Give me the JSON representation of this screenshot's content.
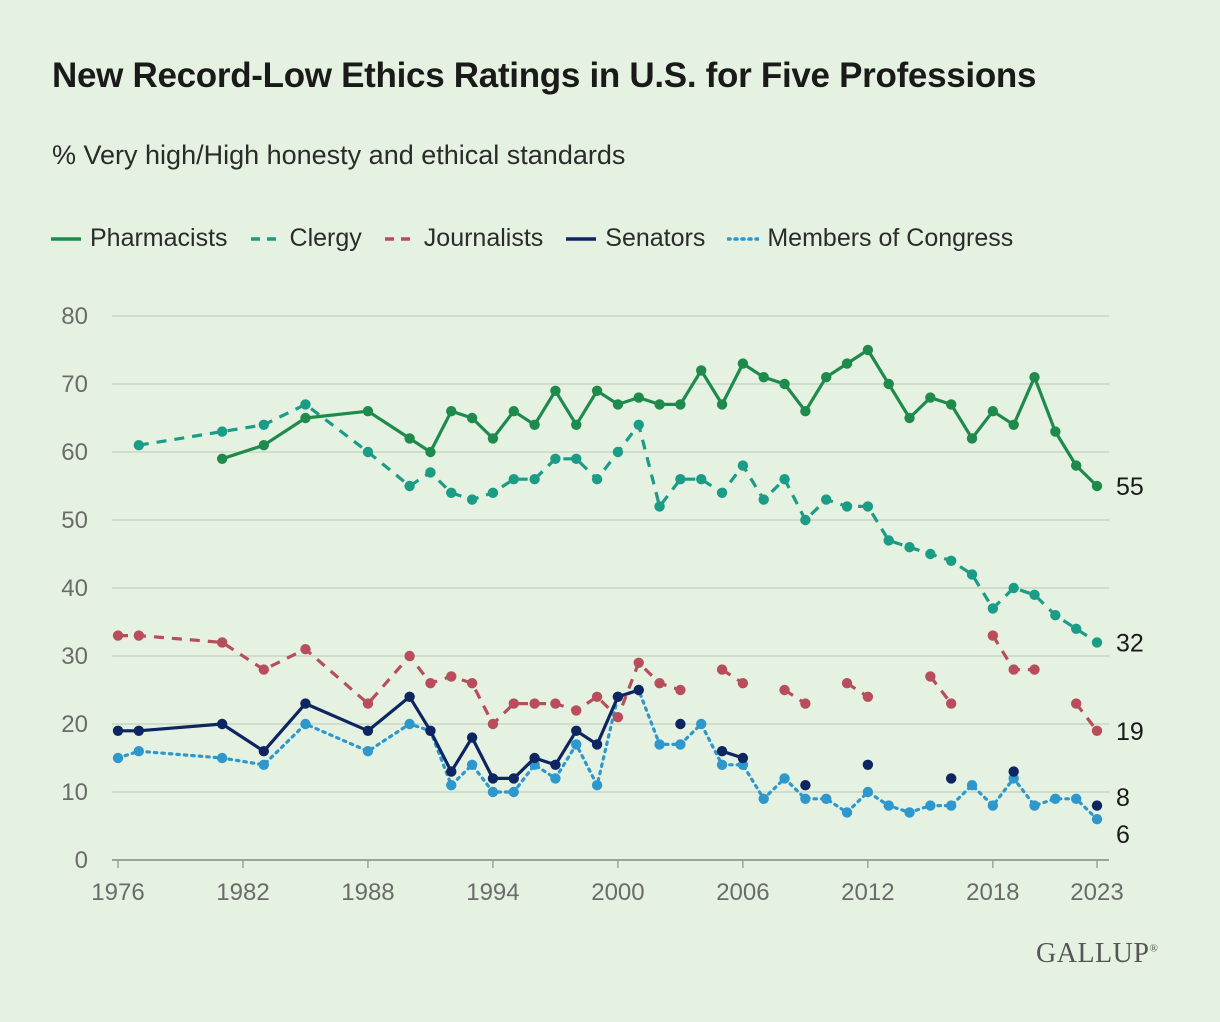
{
  "title": "New Record-Low Ethics Ratings in U.S. for Five Professions",
  "subtitle": "% Very high/High honesty and ethical standards",
  "brand": "GALLUP",
  "brand_mark": "®",
  "chart_data": {
    "type": "line",
    "title": "New Record-Low Ethics Ratings in U.S. for Five Professions",
    "subtitle": "% Very high/High honesty and ethical standards",
    "xlabel": "",
    "ylabel": "",
    "xlim": [
      1976,
      2023
    ],
    "ylim": [
      0,
      80
    ],
    "xticks": [
      "1976",
      "1982",
      "1988",
      "1994",
      "2000",
      "2006",
      "2012",
      "2018",
      "2023"
    ],
    "yticks": [
      "0",
      "10",
      "20",
      "30",
      "40",
      "50",
      "60",
      "70",
      "80"
    ],
    "grid": "horizontal",
    "legend_position": "top",
    "series": [
      {
        "name": "Pharmacists",
        "color": "#1e8a4c",
        "dash": "solid",
        "end_label": "55",
        "points": [
          [
            1981,
            59
          ],
          [
            1983,
            61
          ],
          [
            1985,
            65
          ],
          [
            1988,
            66
          ],
          [
            1990,
            62
          ],
          [
            1991,
            60
          ],
          [
            1992,
            66
          ],
          [
            1993,
            65
          ],
          [
            1994,
            62
          ],
          [
            1995,
            66
          ],
          [
            1996,
            64
          ],
          [
            1997,
            69
          ],
          [
            1998,
            64
          ],
          [
            1999,
            69
          ],
          [
            2000,
            67
          ],
          [
            2001,
            68
          ],
          [
            2002,
            67
          ],
          [
            2003,
            67
          ],
          [
            2004,
            72
          ],
          [
            2005,
            67
          ],
          [
            2006,
            73
          ],
          [
            2007,
            71
          ],
          [
            2008,
            70
          ],
          [
            2009,
            66
          ],
          [
            2010,
            71
          ],
          [
            2011,
            73
          ],
          [
            2012,
            75
          ],
          [
            2013,
            70
          ],
          [
            2014,
            65
          ],
          [
            2015,
            68
          ],
          [
            2016,
            67
          ],
          [
            2017,
            62
          ],
          [
            2018,
            66
          ],
          [
            2019,
            64
          ],
          [
            2020,
            71
          ],
          [
            2021,
            63
          ],
          [
            2022,
            58
          ],
          [
            2023,
            55
          ]
        ]
      },
      {
        "name": "Clergy",
        "color": "#1a9c86",
        "dash": "dashed",
        "end_label": "32",
        "points": [
          [
            1977,
            61
          ],
          [
            1981,
            63
          ],
          [
            1983,
            64
          ],
          [
            1985,
            67
          ],
          [
            1988,
            60
          ],
          [
            1990,
            55
          ],
          [
            1991,
            57
          ],
          [
            1992,
            54
          ],
          [
            1993,
            53
          ],
          [
            1994,
            54
          ],
          [
            1995,
            56
          ],
          [
            1996,
            56
          ],
          [
            1997,
            59
          ],
          [
            1998,
            59
          ],
          [
            1999,
            56
          ],
          [
            2000,
            60
          ],
          [
            2001,
            64
          ],
          [
            2002,
            52
          ],
          [
            2003,
            56
          ],
          [
            2004,
            56
          ],
          [
            2005,
            54
          ],
          [
            2006,
            58
          ],
          [
            2007,
            53
          ],
          [
            2008,
            56
          ],
          [
            2009,
            50
          ],
          [
            2010,
            53
          ],
          [
            2011,
            52
          ],
          [
            2012,
            52
          ],
          [
            2013,
            47
          ],
          [
            2014,
            46
          ],
          [
            2015,
            45
          ],
          [
            2016,
            44
          ],
          [
            2017,
            42
          ],
          [
            2018,
            37
          ],
          [
            2019,
            40
          ],
          [
            2020,
            39
          ],
          [
            2021,
            36
          ],
          [
            2022,
            34
          ],
          [
            2023,
            32
          ]
        ]
      },
      {
        "name": "Journalists",
        "color": "#b84e5c",
        "dash": "dashed",
        "end_label": "19",
        "points": [
          [
            1976,
            33
          ],
          [
            1977,
            33
          ],
          [
            1981,
            32
          ],
          [
            1983,
            28
          ],
          [
            1985,
            31
          ],
          [
            1988,
            23
          ],
          [
            1990,
            30
          ],
          [
            1991,
            26
          ],
          [
            1992,
            27
          ],
          [
            1993,
            26
          ],
          [
            1994,
            20
          ],
          [
            1995,
            23
          ],
          [
            1996,
            23
          ],
          [
            1997,
            23
          ],
          [
            1998,
            22
          ],
          [
            1999,
            24
          ],
          [
            2000,
            21
          ],
          [
            2001,
            29
          ],
          [
            2002,
            26
          ],
          [
            2003,
            25
          ],
          [
            null,
            null
          ],
          [
            2005,
            28
          ],
          [
            2006,
            26
          ],
          [
            null,
            null
          ],
          [
            2008,
            25
          ],
          [
            2009,
            23
          ],
          [
            null,
            null
          ],
          [
            2011,
            26
          ],
          [
            2012,
            24
          ],
          [
            null,
            null
          ],
          [
            2015,
            27
          ],
          [
            2016,
            23
          ],
          [
            null,
            null
          ],
          [
            2018,
            33
          ],
          [
            2019,
            28
          ],
          [
            2020,
            28
          ],
          [
            null,
            null
          ],
          [
            2022,
            23
          ],
          [
            2023,
            19
          ]
        ]
      },
      {
        "name": "Senators",
        "color": "#0d2560",
        "dash": "solid",
        "end_label": "8",
        "points": [
          [
            1976,
            19
          ],
          [
            1977,
            19
          ],
          [
            1981,
            20
          ],
          [
            1983,
            16
          ],
          [
            1985,
            23
          ],
          [
            1988,
            19
          ],
          [
            1990,
            24
          ],
          [
            1991,
            19
          ],
          [
            1992,
            13
          ],
          [
            1993,
            18
          ],
          [
            1994,
            12
          ],
          [
            1995,
            12
          ],
          [
            1996,
            15
          ],
          [
            1997,
            14
          ],
          [
            1998,
            19
          ],
          [
            1999,
            17
          ],
          [
            2000,
            24
          ],
          [
            2001,
            25
          ],
          [
            null,
            null
          ],
          [
            2003,
            20
          ],
          [
            null,
            null
          ],
          [
            2005,
            16
          ],
          [
            2006,
            15
          ],
          [
            null,
            null
          ],
          [
            2009,
            11
          ],
          [
            null,
            null
          ],
          [
            2012,
            14
          ],
          [
            null,
            null
          ],
          [
            2016,
            12
          ],
          [
            null,
            null
          ],
          [
            2019,
            13
          ],
          [
            null,
            null
          ],
          [
            2023,
            8
          ]
        ]
      },
      {
        "name": "Members of Congress",
        "color": "#2e97cc",
        "dash": "dotted",
        "end_label": "6",
        "points": [
          [
            1976,
            15
          ],
          [
            1977,
            16
          ],
          [
            1981,
            15
          ],
          [
            1983,
            14
          ],
          [
            1985,
            20
          ],
          [
            1988,
            16
          ],
          [
            1990,
            20
          ],
          [
            1991,
            19
          ],
          [
            1992,
            11
          ],
          [
            1993,
            14
          ],
          [
            1994,
            10
          ],
          [
            1995,
            10
          ],
          [
            1996,
            14
          ],
          [
            1997,
            12
          ],
          [
            1998,
            17
          ],
          [
            1999,
            11
          ],
          [
            2000,
            24
          ],
          [
            2001,
            25
          ],
          [
            2002,
            17
          ],
          [
            2003,
            17
          ],
          [
            2004,
            20
          ],
          [
            2005,
            14
          ],
          [
            2006,
            14
          ],
          [
            2007,
            9
          ],
          [
            2008,
            12
          ],
          [
            2009,
            9
          ],
          [
            2010,
            9
          ],
          [
            2011,
            7
          ],
          [
            2012,
            10
          ],
          [
            2013,
            8
          ],
          [
            2014,
            7
          ],
          [
            2015,
            8
          ],
          [
            2016,
            8
          ],
          [
            2017,
            11
          ],
          [
            2018,
            8
          ],
          [
            2019,
            12
          ],
          [
            2020,
            8
          ],
          [
            2021,
            9
          ],
          [
            2022,
            9
          ],
          [
            2023,
            6
          ]
        ]
      }
    ]
  }
}
